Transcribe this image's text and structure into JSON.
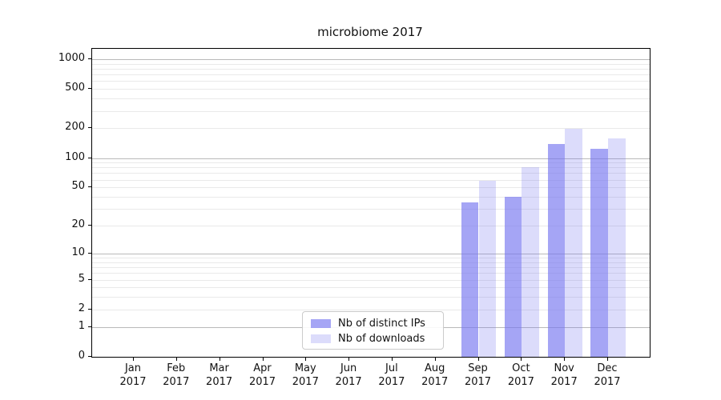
{
  "chart_data": {
    "type": "bar",
    "title": "microbiome 2017",
    "categories": [
      "Jan 2017",
      "Feb 2017",
      "Mar 2017",
      "Apr 2017",
      "May 2017",
      "Jun 2017",
      "Jul 2017",
      "Aug 2017",
      "Sep 2017",
      "Oct 2017",
      "Nov 2017",
      "Dec 2017"
    ],
    "series": [
      {
        "name": "Nb of distinct IPs",
        "key": "distinct-ips",
        "color": "rgba(118,118,240,0.66)",
        "values": [
          0,
          0,
          0,
          0,
          0,
          0,
          0,
          0,
          35,
          40,
          138,
          124
        ]
      },
      {
        "name": "Nb of downloads",
        "key": "downloads",
        "color": "rgba(118,118,240,0.26)",
        "values": [
          0,
          0,
          0,
          0,
          0,
          0,
          0,
          0,
          58,
          80,
          198,
          157
        ]
      }
    ],
    "y_axis": {
      "scale": "log1p",
      "tick_labels": [
        0,
        1,
        2,
        5,
        10,
        20,
        50,
        100,
        200,
        500,
        1000
      ],
      "major_gridlines": [
        1,
        10,
        100,
        1000
      ],
      "minor_gridlines": [
        2,
        3,
        4,
        5,
        6,
        7,
        8,
        9,
        20,
        30,
        40,
        50,
        60,
        70,
        80,
        90,
        200,
        300,
        400,
        500,
        600,
        700,
        800,
        900
      ],
      "ylim": [
        0,
        1270
      ]
    },
    "x_axis": {
      "label_year": "2017"
    },
    "grid": true,
    "legend_position": "lower-center",
    "colors": {
      "major_grid": "#b9b9b9",
      "minor_grid": "#e9e9e9",
      "spine": "#000000",
      "text": "#111111"
    }
  }
}
